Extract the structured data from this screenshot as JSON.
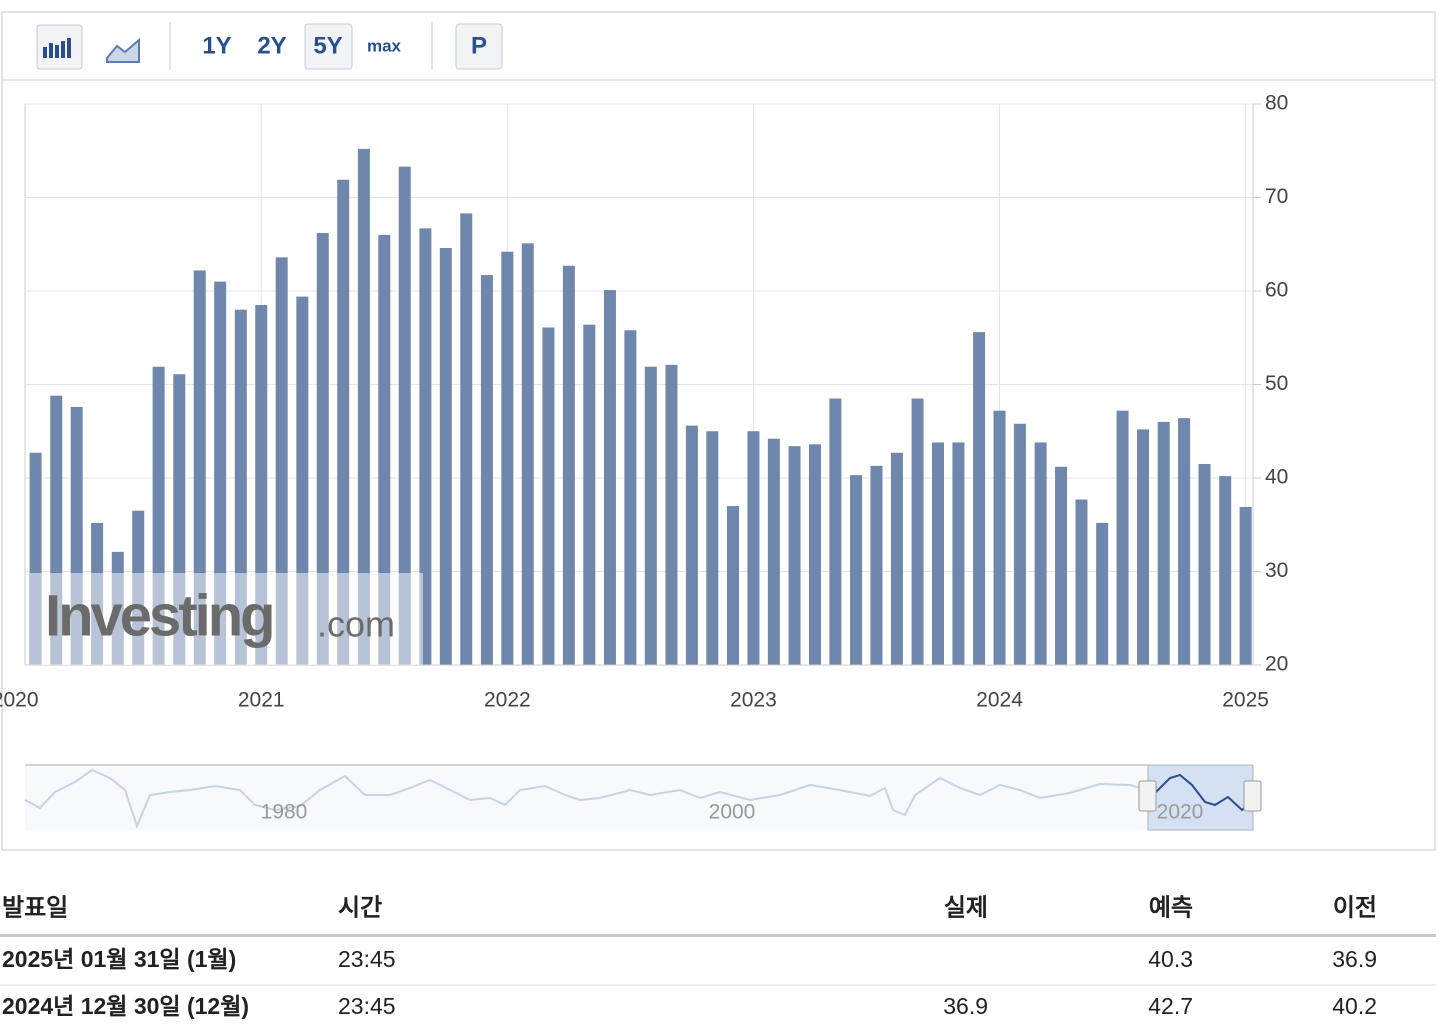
{
  "toolbar": {
    "buttons": [
      "1Y",
      "2Y",
      "5Y",
      "max",
      "P"
    ]
  },
  "chart_data": {
    "type": "bar",
    "x": [
      2020.083,
      2020.167,
      2020.25,
      2020.333,
      2020.417,
      2020.5,
      2020.583,
      2020.667,
      2020.75,
      2020.833,
      2020.917,
      2021,
      2021.083,
      2021.167,
      2021.25,
      2021.333,
      2021.417,
      2021.5,
      2021.583,
      2021.667,
      2021.75,
      2021.833,
      2021.917,
      2022,
      2022.083,
      2022.167,
      2022.25,
      2022.333,
      2022.417,
      2022.5,
      2022.583,
      2022.667,
      2022.75,
      2022.833,
      2022.917,
      2023,
      2023.083,
      2023.167,
      2023.25,
      2023.333,
      2023.417,
      2023.5,
      2023.583,
      2023.667,
      2023.75,
      2023.833,
      2023.917,
      2024,
      2024.083,
      2024.167,
      2024.25,
      2024.333,
      2024.417,
      2024.5,
      2024.583,
      2024.667,
      2024.75,
      2024.833,
      2024.917,
      2025
    ],
    "values": [
      42.7,
      48.8,
      47.6,
      35.2,
      32.1,
      36.5,
      51.9,
      51.1,
      62.2,
      61.0,
      58.0,
      58.5,
      63.6,
      59.4,
      66.2,
      71.9,
      75.2,
      66.0,
      73.3,
      66.7,
      64.6,
      68.3,
      61.7,
      64.2,
      65.1,
      56.1,
      62.7,
      56.4,
      60.1,
      55.8,
      51.9,
      52.1,
      45.6,
      45.0,
      37.0,
      45.0,
      44.2,
      43.4,
      43.6,
      48.5,
      40.3,
      41.3,
      42.7,
      48.5,
      43.8,
      43.8,
      55.6,
      47.2,
      45.8,
      43.8,
      41.2,
      37.7,
      35.2,
      47.2,
      45.2,
      46.0,
      46.4,
      41.5,
      40.2,
      36.9
    ],
    "color": "#6f86ad",
    "xlim": [
      2020.04,
      2025.03
    ],
    "xticks": [
      2020,
      2021,
      2022,
      2023,
      2024,
      2025
    ],
    "ylim": [
      20,
      80
    ],
    "yticks": [
      20,
      30,
      40,
      50,
      60,
      70,
      80
    ],
    "grid": true,
    "watermark": [
      "Investing",
      ".com"
    ]
  },
  "navigator": {
    "labels": [
      "1980",
      "2000",
      "2020"
    ]
  },
  "table": {
    "headers": [
      "발표일",
      "시간",
      "실제",
      "예측",
      "이전"
    ],
    "rows": [
      [
        "2025년 01월 31일 (1월)",
        "23:45",
        null,
        "40.3",
        "36.9"
      ],
      [
        "2024년 12월 30일 (12월)",
        "23:45",
        "36.9",
        "42.7",
        "40.2"
      ]
    ]
  }
}
